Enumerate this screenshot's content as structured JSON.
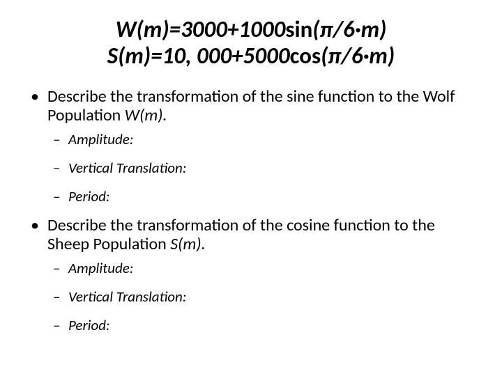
{
  "title": {
    "line1_pre": "W(m)=3000+1000",
    "line1_fn": "sin",
    "line1_post": "(π/6·m)",
    "line2_pre": "S(m)=10, 000+5000",
    "line2_fn": "cos",
    "line2_post": "(π/6·m)"
  },
  "bullets": [
    {
      "text_pre": "Describe the transformation of the sine function to the Wolf Population ",
      "text_ital": "W(m).",
      "sub": [
        "Amplitude:",
        "Vertical Translation:",
        "Period:"
      ]
    },
    {
      "text_pre": "Describe the transformation of the cosine function to the Sheep Population ",
      "text_ital": "S(m).",
      "sub": [
        "Amplitude:",
        "Vertical Translation:",
        "Period:"
      ]
    }
  ]
}
